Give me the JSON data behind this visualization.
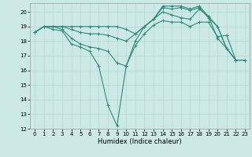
{
  "title": "",
  "xlabel": "Humidex (Indice chaleur)",
  "xlim": [
    -0.5,
    23.5
  ],
  "ylim": [
    12,
    20.6
  ],
  "yticks": [
    12,
    13,
    14,
    15,
    16,
    17,
    18,
    19,
    20
  ],
  "xticks": [
    0,
    1,
    2,
    3,
    4,
    5,
    6,
    7,
    8,
    9,
    10,
    11,
    12,
    13,
    14,
    15,
    16,
    17,
    18,
    19,
    20,
    21,
    22,
    23
  ],
  "line_color": "#2e8b7a",
  "bg_color": "#cce9e5",
  "grid_color": "#b0d8d2",
  "lines": [
    {
      "x": [
        0,
        1,
        2,
        3,
        4,
        5,
        6,
        7,
        8,
        9,
        10,
        11,
        12,
        13,
        14,
        15,
        16,
        17,
        18,
        19,
        20,
        21,
        22,
        23
      ],
      "y": [
        18.6,
        19.0,
        18.8,
        18.7,
        17.8,
        17.6,
        17.3,
        16.3,
        13.6,
        12.2,
        16.3,
        17.7,
        18.5,
        19.1,
        19.4,
        19.3,
        19.3,
        19.0,
        19.3,
        19.3,
        18.3,
        18.4,
        16.7,
        16.7
      ]
    },
    {
      "x": [
        0,
        1,
        2,
        3,
        4,
        5,
        6,
        7,
        8,
        9,
        10,
        11,
        12,
        13,
        14,
        15,
        16,
        17,
        18,
        19,
        20,
        21,
        22,
        23
      ],
      "y": [
        18.6,
        19.0,
        19.0,
        18.8,
        18.2,
        17.8,
        17.6,
        17.5,
        17.3,
        16.5,
        16.3,
        18.0,
        19.0,
        19.5,
        20.0,
        19.8,
        19.6,
        19.5,
        20.2,
        19.7,
        18.2,
        17.5,
        16.7,
        16.7
      ]
    },
    {
      "x": [
        0,
        1,
        2,
        3,
        4,
        5,
        6,
        7,
        8,
        9,
        10,
        11,
        12,
        13,
        14,
        15,
        16,
        17,
        18,
        19,
        20,
        21,
        22,
        23
      ],
      "y": [
        18.6,
        19.0,
        19.0,
        19.0,
        18.8,
        18.6,
        18.5,
        18.5,
        18.4,
        18.2,
        18.0,
        18.5,
        19.0,
        19.5,
        20.3,
        20.2,
        20.3,
        20.1,
        20.3,
        19.6,
        19.0,
        17.5,
        16.7,
        16.7
      ]
    },
    {
      "x": [
        0,
        1,
        2,
        3,
        4,
        5,
        6,
        7,
        8,
        9,
        10,
        11,
        12,
        13,
        14,
        15,
        16,
        17,
        18,
        19,
        20,
        21,
        22,
        23
      ],
      "y": [
        18.6,
        19.0,
        19.0,
        19.0,
        19.0,
        19.0,
        19.0,
        19.0,
        19.0,
        19.0,
        18.8,
        18.5,
        19.0,
        19.5,
        20.4,
        20.4,
        20.4,
        20.2,
        20.4,
        19.7,
        19.0,
        17.5,
        16.7,
        16.7
      ]
    }
  ],
  "marker": "+",
  "markersize": 3,
  "linewidth": 0.8
}
